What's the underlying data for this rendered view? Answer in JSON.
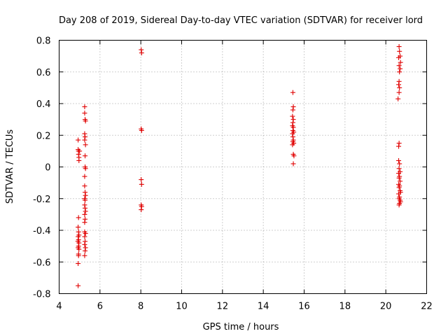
{
  "chart_data": {
    "type": "scatter",
    "title": "Day 208 of 2019, Sidereal Day-to-day VTEC variation (SDTVAR) for receiver lord",
    "xlabel": "GPS time / hours",
    "ylabel": "SDTVAR / TECUs",
    "xlim": [
      4,
      22
    ],
    "ylim": [
      -0.8,
      0.8
    ],
    "xticks": [
      4,
      6,
      8,
      10,
      12,
      14,
      16,
      18,
      20,
      22
    ],
    "xtick_labels": [
      "4",
      "6",
      "8",
      "10",
      "12",
      "14",
      "16",
      "18",
      "20",
      "22"
    ],
    "yticks": [
      -0.8,
      -0.6,
      -0.4,
      -0.2,
      0,
      0.2,
      0.4,
      0.6,
      0.8
    ],
    "ytick_labels": [
      "-0.8",
      "-0.6",
      "-0.4",
      "-0.2",
      "0",
      "0.2",
      "0.4",
      "0.6",
      "0.8"
    ],
    "grid": true,
    "marker": "+",
    "color": "#e00000",
    "series": [
      {
        "name": "SDTVAR",
        "points": [
          [
            4.93,
            0.17
          ],
          [
            4.93,
            0.11
          ],
          [
            4.95,
            0.1
          ],
          [
            4.95,
            0.08
          ],
          [
            4.97,
            0.06
          ],
          [
            4.97,
            0.04
          ],
          [
            5.0,
            0.1
          ],
          [
            4.95,
            -0.32
          ],
          [
            4.93,
            -0.38
          ],
          [
            4.95,
            -0.41
          ],
          [
            4.97,
            -0.43
          ],
          [
            4.93,
            -0.44
          ],
          [
            4.95,
            -0.46
          ],
          [
            4.92,
            -0.47
          ],
          [
            4.97,
            -0.48
          ],
          [
            4.95,
            -0.5
          ],
          [
            4.93,
            -0.51
          ],
          [
            4.97,
            -0.52
          ],
          [
            4.95,
            -0.55
          ],
          [
            4.95,
            -0.56
          ],
          [
            4.93,
            -0.61
          ],
          [
            4.93,
            -0.75
          ],
          [
            5.25,
            0.38
          ],
          [
            5.25,
            0.34
          ],
          [
            5.27,
            0.3
          ],
          [
            5.29,
            0.29
          ],
          [
            5.25,
            0.21
          ],
          [
            5.27,
            0.19
          ],
          [
            5.25,
            0.17
          ],
          [
            5.29,
            0.14
          ],
          [
            5.27,
            0.07
          ],
          [
            5.27,
            0.0
          ],
          [
            5.29,
            -0.01
          ],
          [
            5.25,
            -0.06
          ],
          [
            5.25,
            -0.12
          ],
          [
            5.27,
            -0.16
          ],
          [
            5.29,
            -0.18
          ],
          [
            5.25,
            -0.2
          ],
          [
            5.27,
            -0.21
          ],
          [
            5.25,
            -0.24
          ],
          [
            5.27,
            -0.26
          ],
          [
            5.29,
            -0.28
          ],
          [
            5.25,
            -0.3
          ],
          [
            5.27,
            -0.33
          ],
          [
            5.25,
            -0.35
          ],
          [
            5.25,
            -0.41
          ],
          [
            5.29,
            -0.42
          ],
          [
            5.25,
            -0.44
          ],
          [
            5.27,
            -0.47
          ],
          [
            5.25,
            -0.49
          ],
          [
            5.29,
            -0.51
          ],
          [
            5.27,
            -0.53
          ],
          [
            5.25,
            -0.56
          ],
          [
            8.02,
            0.74
          ],
          [
            8.04,
            0.72
          ],
          [
            8.02,
            0.24
          ],
          [
            8.04,
            0.23
          ],
          [
            8.02,
            -0.08
          ],
          [
            8.04,
            -0.11
          ],
          [
            8.02,
            -0.24
          ],
          [
            8.04,
            -0.25
          ],
          [
            8.02,
            -0.27
          ],
          [
            15.45,
            0.47
          ],
          [
            15.47,
            0.38
          ],
          [
            15.45,
            0.36
          ],
          [
            15.43,
            0.32
          ],
          [
            15.47,
            0.3
          ],
          [
            15.45,
            0.28
          ],
          [
            15.43,
            0.26
          ],
          [
            15.47,
            0.25
          ],
          [
            15.45,
            0.23
          ],
          [
            15.49,
            0.22
          ],
          [
            15.43,
            0.21
          ],
          [
            15.45,
            0.19
          ],
          [
            15.47,
            0.17
          ],
          [
            15.45,
            0.16
          ],
          [
            15.49,
            0.15
          ],
          [
            15.43,
            0.14
          ],
          [
            15.47,
            0.08
          ],
          [
            15.5,
            0.07
          ],
          [
            15.47,
            0.02
          ],
          [
            20.65,
            0.76
          ],
          [
            20.67,
            0.73
          ],
          [
            20.7,
            0.7
          ],
          [
            20.63,
            0.69
          ],
          [
            20.72,
            0.66
          ],
          [
            20.65,
            0.64
          ],
          [
            20.7,
            0.62
          ],
          [
            20.67,
            0.6
          ],
          [
            20.65,
            0.54
          ],
          [
            20.63,
            0.52
          ],
          [
            20.67,
            0.5
          ],
          [
            20.65,
            0.47
          ],
          [
            20.6,
            0.43
          ],
          [
            20.65,
            0.15
          ],
          [
            20.63,
            0.13
          ],
          [
            20.63,
            0.04
          ],
          [
            20.67,
            0.02
          ],
          [
            20.65,
            -0.01
          ],
          [
            20.7,
            -0.03
          ],
          [
            20.63,
            -0.04
          ],
          [
            20.67,
            -0.06
          ],
          [
            20.65,
            -0.07
          ],
          [
            20.7,
            -0.09
          ],
          [
            20.63,
            -0.11
          ],
          [
            20.67,
            -0.12
          ],
          [
            20.65,
            -0.13
          ],
          [
            20.7,
            -0.15
          ],
          [
            20.72,
            -0.16
          ],
          [
            20.63,
            -0.17
          ],
          [
            20.67,
            -0.19
          ],
          [
            20.65,
            -0.2
          ],
          [
            20.7,
            -0.21
          ],
          [
            20.72,
            -0.22
          ],
          [
            20.67,
            -0.23
          ],
          [
            20.65,
            -0.24
          ]
        ]
      }
    ]
  }
}
